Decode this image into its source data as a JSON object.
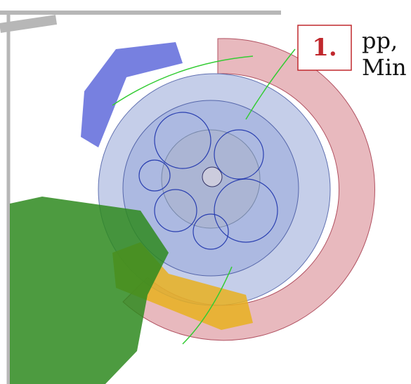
{
  "badge": {
    "label": "1."
  },
  "caption": {
    "lines": [
      "pp,",
      "Min"
    ]
  }
}
